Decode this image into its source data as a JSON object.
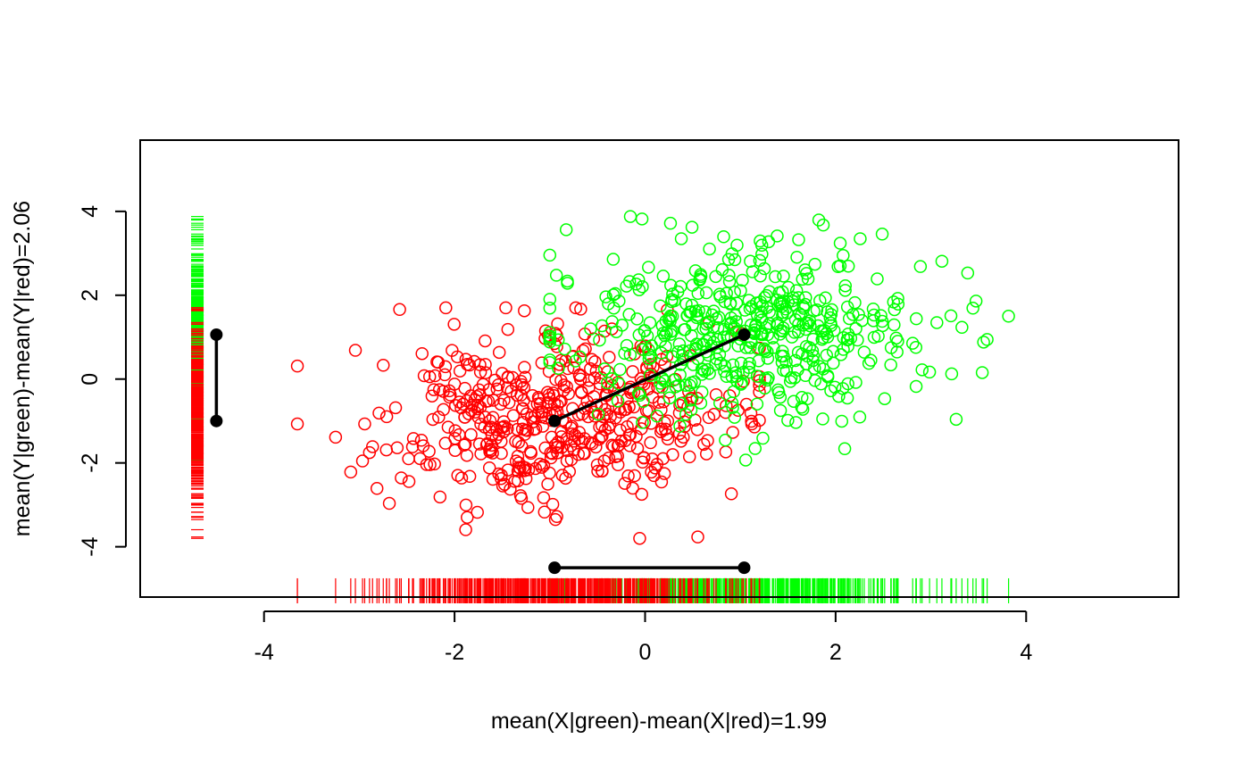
{
  "chart_data": {
    "type": "scatter",
    "title": "",
    "xlabel": "mean(X|green)-mean(X|red)=1.99",
    "ylabel": "mean(Y|green)-mean(Y|red)=2.06",
    "xlim": [
      -5.3,
      5.6
    ],
    "ylim": [
      -5.2,
      5.7
    ],
    "xticks": [
      -4,
      -2,
      0,
      2,
      4
    ],
    "yticks": [
      -4,
      -2,
      0,
      2,
      4
    ],
    "xtick_labels": [
      "-4",
      "-2",
      "0",
      "2",
      "4"
    ],
    "ytick_labels": [
      "-4",
      "-2",
      "0",
      "2",
      "4"
    ],
    "grid": false,
    "legend": "none",
    "marker": "open-circle",
    "rug_x_position": -4.7,
    "rug_y_position": -5.05,
    "series": [
      {
        "color": "#ff0000",
        "count": 500,
        "mean": [
          -0.95,
          -1.0
        ],
        "sd": [
          0.95,
          1.05
        ],
        "x_range": [
          -3.65,
          1.2
        ],
        "y_range": [
          -3.8,
          1.7
        ]
      },
      {
        "color": "#00ff00",
        "count": 500,
        "mean": [
          1.04,
          1.06
        ],
        "sd": [
          0.95,
          1.05
        ],
        "x_range": [
          -1.0,
          4.4
        ],
        "y_range": [
          -2.05,
          4.3
        ]
      }
    ],
    "mean_connector": {
      "color": "#000000",
      "from": [
        -0.95,
        -1.0
      ],
      "to": [
        1.04,
        1.06
      ]
    },
    "x_difference_segment": {
      "y": -4.5,
      "x_from": -0.95,
      "x_to": 1.04
    },
    "y_difference_segment": {
      "x": -4.5,
      "y_from": -1.0,
      "y_to": 1.06
    }
  }
}
